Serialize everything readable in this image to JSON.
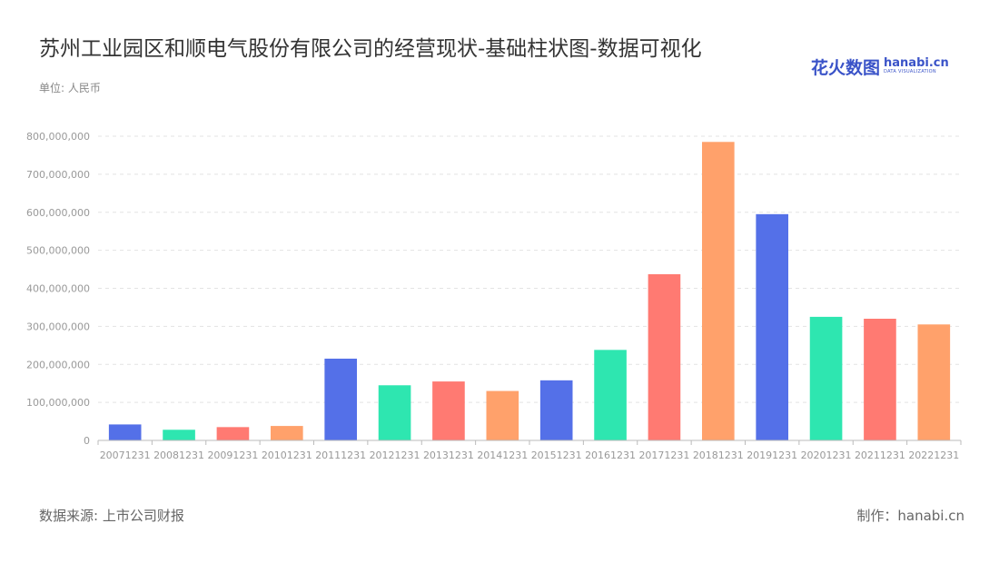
{
  "header": {
    "title": "苏州工业园区和顺电气股份有限公司的经营现状-基础柱状图-数据可视化",
    "unit": "单位: 人民币"
  },
  "logo": {
    "cn": "花火数图",
    "en": "hanabi.cn",
    "sub": "DATA VISUALIZATION"
  },
  "footer": {
    "source": "数据来源: 上市公司财报",
    "maker": "制作：hanabi.cn"
  },
  "chart_data": {
    "type": "bar",
    "title": "苏州工业园区和顺电气股份有限公司的经营现状-基础柱状图-数据可视化",
    "xlabel": "",
    "ylabel": "",
    "ylim": [
      0,
      800000000
    ],
    "yticks": [
      0,
      100000000,
      200000000,
      300000000,
      400000000,
      500000000,
      600000000,
      700000000,
      800000000
    ],
    "ytick_labels": [
      "0",
      "100,000,000",
      "200,000,000",
      "300,000,000",
      "400,000,000",
      "500,000,000",
      "600,000,000",
      "700,000,000",
      "800,000,000"
    ],
    "grid": "horizontal-dashed",
    "categories": [
      "20071231",
      "20081231",
      "20091231",
      "20101231",
      "20111231",
      "20121231",
      "20131231",
      "20141231",
      "20151231",
      "20161231",
      "20171231",
      "20181231",
      "20191231",
      "20201231",
      "20211231",
      "20221231"
    ],
    "values": [
      42000000,
      28000000,
      35000000,
      38000000,
      215000000,
      145000000,
      155000000,
      130000000,
      158000000,
      238000000,
      437000000,
      785000000,
      595000000,
      325000000,
      320000000,
      305000000
    ],
    "palette": [
      "#5470e8",
      "#2ee6b0",
      "#ff7a72",
      "#ffa16b"
    ]
  }
}
